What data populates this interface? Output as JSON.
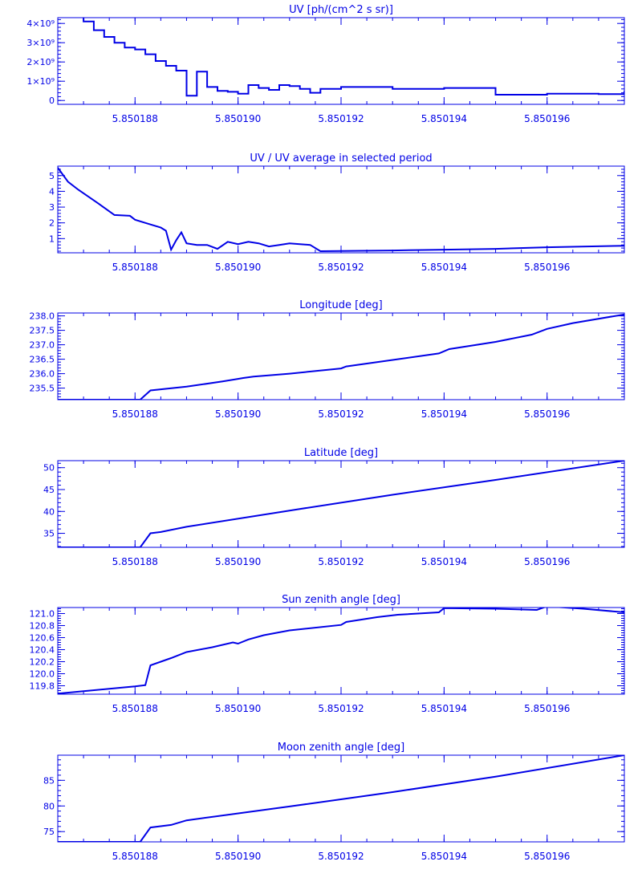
{
  "style": {
    "color": "#0000e6",
    "background": "#ffffff"
  },
  "x_axis": {
    "range": [
      5.8501865,
      5.8501975
    ],
    "major_ticks": [
      5.850188,
      5.85019,
      5.850192,
      5.850194,
      5.850196
    ],
    "labels": [
      "5.850188",
      "5.850190",
      "5.850192",
      "5.850194",
      "5.850196"
    ],
    "minor_step": 5e-07
  },
  "chart_data": [
    {
      "type": "line",
      "step": true,
      "title": "UV [ph/(cm^2 s sr)]",
      "ylim": [
        -200000000,
        4300000000
      ],
      "y_ticks": [
        0,
        1000000000,
        2000000000,
        3000000000,
        4000000000
      ],
      "y_tick_labels": [
        "0",
        "1×10⁹",
        "2×10⁹",
        "3×10⁹",
        "4×10⁹"
      ],
      "y_minor_step": 200000000,
      "series": [
        {
          "x": [
            5.8501865,
            5.850187,
            5.8501872,
            5.8501874,
            5.8501876,
            5.8501878,
            5.850188,
            5.8501882,
            5.8501884,
            5.8501886,
            5.8501888,
            5.850189,
            5.8501892,
            5.8501894,
            5.8501896,
            5.8501898,
            5.85019,
            5.8501902,
            5.8501904,
            5.8501906,
            5.8501908,
            5.850191,
            5.8501912,
            5.8501914,
            5.8501916,
            5.850192,
            5.850193,
            5.850194,
            5.850195,
            5.850196,
            5.850197,
            5.8501975
          ],
          "y": [
            4400000000,
            4100000000,
            3650000000,
            3300000000,
            3000000000,
            2750000000,
            2650000000,
            2400000000,
            2050000000,
            1800000000,
            1550000000,
            250000000,
            1500000000,
            700000000,
            500000000,
            450000000,
            350000000,
            800000000,
            650000000,
            550000000,
            800000000,
            750000000,
            600000000,
            400000000,
            600000000,
            700000000,
            600000000,
            650000000,
            300000000,
            350000000,
            330000000,
            500000000
          ]
        }
      ]
    },
    {
      "type": "line",
      "title": "UV / UV average in selected period",
      "ylim": [
        0.1,
        5.6
      ],
      "y_ticks": [
        1,
        2,
        3,
        4,
        5
      ],
      "y_tick_labels": [
        "1",
        "2",
        "3",
        "4",
        "5"
      ],
      "y_minor_step": 0.2,
      "series": [
        {
          "x": [
            5.8501865,
            5.8501867,
            5.8501869,
            5.8501873,
            5.8501876,
            5.8501879,
            5.850188,
            5.8501883,
            5.8501885,
            5.8501886,
            5.8501887,
            5.8501888,
            5.8501889,
            5.850189,
            5.8501892,
            5.8501894,
            5.8501896,
            5.8501898,
            5.85019,
            5.8501902,
            5.8501904,
            5.8501906,
            5.8501908,
            5.850191,
            5.8501912,
            5.8501914,
            5.8501916,
            5.850193,
            5.850194,
            5.850195,
            5.850196,
            5.8501975
          ],
          "y": [
            5.5,
            4.6,
            4.1,
            3.2,
            2.5,
            2.45,
            2.2,
            1.9,
            1.7,
            1.5,
            0.3,
            0.9,
            1.4,
            0.7,
            0.6,
            0.6,
            0.35,
            0.8,
            0.65,
            0.8,
            0.7,
            0.5,
            0.6,
            0.7,
            0.65,
            0.6,
            0.2,
            0.25,
            0.3,
            0.35,
            0.45,
            0.55
          ]
        }
      ]
    },
    {
      "type": "line",
      "title": "Longitude [deg]",
      "ylim": [
        235.1,
        238.1
      ],
      "y_ticks": [
        235.5,
        236,
        236.5,
        237,
        237.5,
        238
      ],
      "y_tick_labels": [
        "235.5",
        "236.0",
        "236.5",
        "237.0",
        "237.5",
        "238.0"
      ],
      "y_minor_step": 0.1,
      "series": [
        {
          "x": [
            5.8501865,
            5.8501867,
            5.8501875,
            5.8501881,
            5.8501883,
            5.850189,
            5.8501897,
            5.85019,
            5.8501901,
            5.8501903,
            5.850191,
            5.850192,
            5.8501921,
            5.8501931,
            5.8501939,
            5.8501941,
            5.850195,
            5.8501957,
            5.850196,
            5.8501965,
            5.8501975
          ],
          "y": [
            235.1,
            235.1,
            235.1,
            235.1,
            235.42,
            235.55,
            235.73,
            235.82,
            235.85,
            235.9,
            236.0,
            236.18,
            236.25,
            236.5,
            236.7,
            236.85,
            237.1,
            237.35,
            237.55,
            237.75,
            238.05
          ]
        }
      ]
    },
    {
      "type": "line",
      "title": "Latitude [deg]",
      "ylim": [
        31.8,
        51.6
      ],
      "y_ticks": [
        35,
        40,
        45,
        50
      ],
      "y_tick_labels": [
        "35",
        "40",
        "45",
        "50"
      ],
      "y_minor_step": 1,
      "series": [
        {
          "x": [
            5.8501865,
            5.8501875,
            5.8501881,
            5.8501883,
            5.8501885,
            5.850189,
            5.850191,
            5.850193,
            5.850195,
            5.8501975
          ],
          "y": [
            31.8,
            31.8,
            31.8,
            35,
            35.3,
            36.5,
            40.2,
            43.8,
            47.2,
            51.6
          ]
        }
      ]
    },
    {
      "type": "line",
      "title": "Sun zenith angle [deg]",
      "ylim": [
        119.66,
        121.1
      ],
      "y_ticks": [
        119.8,
        120,
        120.2,
        120.4,
        120.6,
        120.8,
        121
      ],
      "y_tick_labels": [
        "119.8",
        "120.0",
        "120.2",
        "120.4",
        "120.6",
        "120.8",
        "121.0"
      ],
      "y_minor_step": 0.04,
      "series": [
        {
          "x": [
            5.8501865,
            5.850187,
            5.8501875,
            5.850188,
            5.8501882,
            5.8501883,
            5.8501887,
            5.850189,
            5.8501895,
            5.8501899,
            5.85019,
            5.8501902,
            5.8501905,
            5.850191,
            5.850192,
            5.8501921,
            5.8501927,
            5.8501931,
            5.8501939,
            5.850194,
            5.850195,
            5.8501958,
            5.850196,
            5.8501967,
            5.8501975
          ],
          "y": [
            119.67,
            119.71,
            119.75,
            119.79,
            119.81,
            120.14,
            120.26,
            120.36,
            120.44,
            120.52,
            120.5,
            120.57,
            120.64,
            120.72,
            120.81,
            120.86,
            120.94,
            120.98,
            121.02,
            121.09,
            121.08,
            121.06,
            121.12,
            121.08,
            121.02
          ]
        }
      ]
    },
    {
      "type": "line",
      "title": "Moon zenith angle [deg]",
      "ylim": [
        73,
        89.9
      ],
      "y_ticks": [
        75,
        80,
        85
      ],
      "y_tick_labels": [
        "75",
        "80",
        "85"
      ],
      "y_minor_step": 1,
      "series": [
        {
          "x": [
            5.8501865,
            5.8501875,
            5.8501881,
            5.8501883,
            5.8501887,
            5.850189,
            5.850191,
            5.850193,
            5.850195,
            5.8501975
          ],
          "y": [
            73,
            73,
            73,
            75.8,
            76.3,
            77.2,
            79.9,
            82.7,
            85.7,
            89.9
          ]
        }
      ]
    }
  ]
}
